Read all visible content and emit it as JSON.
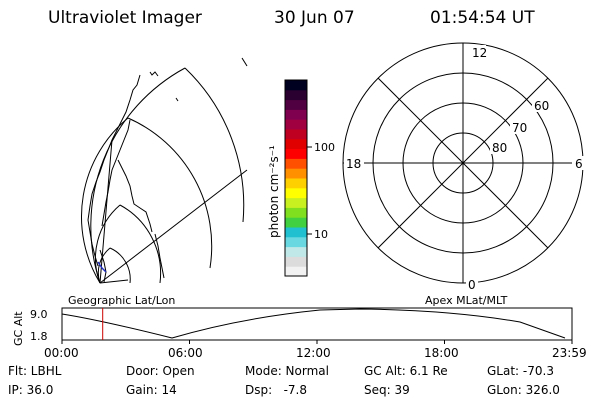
{
  "header": {
    "instrument": "Ultraviolet Imager",
    "date": "30 Jun 07",
    "time": "01:54:54 UT"
  },
  "colorbar": {
    "unit_label": "photon cm⁻²s⁻¹",
    "ticks": [
      "100",
      "10"
    ],
    "colors": [
      "#f2f2f2",
      "#dcdcdc",
      "#c0e8e8",
      "#6ad8e0",
      "#20c0d0",
      "#40d040",
      "#80e020",
      "#c8f020",
      "#ffff00",
      "#ffd000",
      "#ff9000",
      "#ff5000",
      "#ff0000",
      "#e00000",
      "#c00020",
      "#a00040",
      "#800050",
      "#500040",
      "#2a0030",
      "#000020"
    ]
  },
  "geo_panel": {
    "label": "Geographic Lat/Lon"
  },
  "polar_panel": {
    "label": "Apex MLat/MLT",
    "mlt_labels": {
      "top": "12",
      "left": "18",
      "right": "6",
      "bottom": "0"
    },
    "mlat_labels": [
      "60",
      "70",
      "80"
    ]
  },
  "altitude_plot": {
    "ylabel": "GC Alt",
    "yticks": [
      "9.0",
      "1.8"
    ],
    "xticks": [
      "00:00",
      "06:00",
      "12:00",
      "18:00",
      "23:59"
    ],
    "current_time_marker_hours": 1.915,
    "marker_color": "#cc0000"
  },
  "info": {
    "filter": "Flt: LBHL",
    "door": "Door: Open",
    "mode": "Mode: Normal",
    "gc_alt": "GC Alt: 6.1 Re",
    "glat": "GLat: -70.3",
    "ip": "IP: 36.0",
    "gain": "Gain: 14",
    "dsp": "Dsp:   -7.8",
    "seq": "Seq: 39",
    "glon": "GLon: 326.0"
  }
}
